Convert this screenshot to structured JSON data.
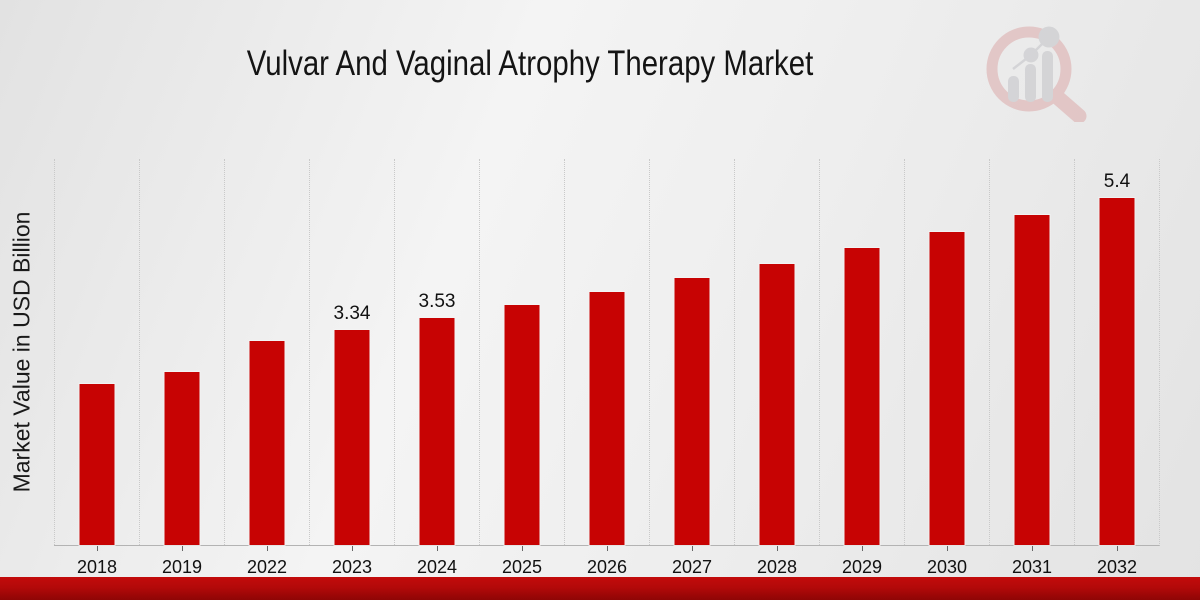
{
  "header": {
    "title": "Vulvar And Vaginal Atrophy Therapy Market"
  },
  "y_axis": {
    "label": "Market Value in USD Billion"
  },
  "watermark": {
    "icon": "magnifier-bar-chart-logo"
  },
  "footer": {
    "banner_color": "#b30909"
  },
  "colors": {
    "bar": "#c70303",
    "text": "#141414"
  },
  "chart_data": {
    "type": "bar",
    "title": "Vulvar And Vaginal Atrophy Therapy Market",
    "ylabel": "Market Value in USD Billion",
    "xlabel": "",
    "categories": [
      "2018",
      "2019",
      "2022",
      "2023",
      "2024",
      "2025",
      "2026",
      "2027",
      "2028",
      "2029",
      "2030",
      "2031",
      "2032"
    ],
    "values": [
      2.5,
      2.69,
      3.17,
      3.34,
      3.53,
      3.73,
      3.93,
      4.15,
      4.37,
      4.61,
      4.86,
      5.13,
      5.4
    ],
    "data_labels": {
      "2023": "3.34",
      "2024": "3.53",
      "2032": "5.4"
    },
    "ylim": [
      0,
      6
    ],
    "grid": "vertical-dotted",
    "legend": "none",
    "bar_color": "#c70303"
  }
}
